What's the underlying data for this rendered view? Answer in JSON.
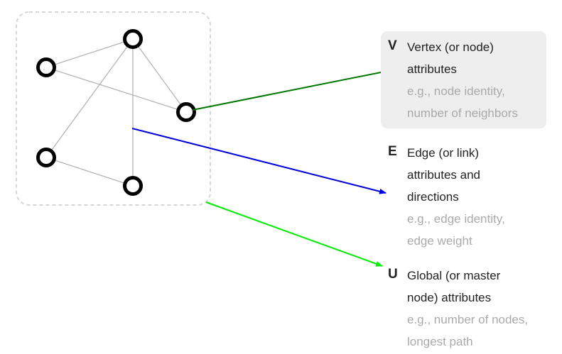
{
  "colors": {
    "vertex_arrow": "#007700",
    "edge_arrow": "#0000dd",
    "global_arrow": "#00ee00",
    "graph_edge": "#b5b5b5",
    "graph_box_border": "#d6d6d6",
    "node_stroke": "#000000",
    "highlight_bg": "#eeeeee",
    "title_text": "#222222",
    "example_text": "#aaaaaa"
  },
  "attributes": {
    "vertex": {
      "letter": "V",
      "title_lines": [
        "Vertex (or node)",
        "attributes"
      ],
      "example_lines": [
        "e.g., node identity,",
        "number of neighbors"
      ]
    },
    "edge": {
      "letter": "E",
      "title_lines": [
        "Edge (or link)",
        "attributes and",
        "directions"
      ],
      "example_lines": [
        "e.g., edge identity,",
        "edge weight"
      ]
    },
    "global": {
      "letter": "U",
      "title_lines": [
        "Global (or master",
        "node) attributes"
      ],
      "example_lines": [
        "e.g., number of nodes,",
        "longest path"
      ]
    }
  }
}
